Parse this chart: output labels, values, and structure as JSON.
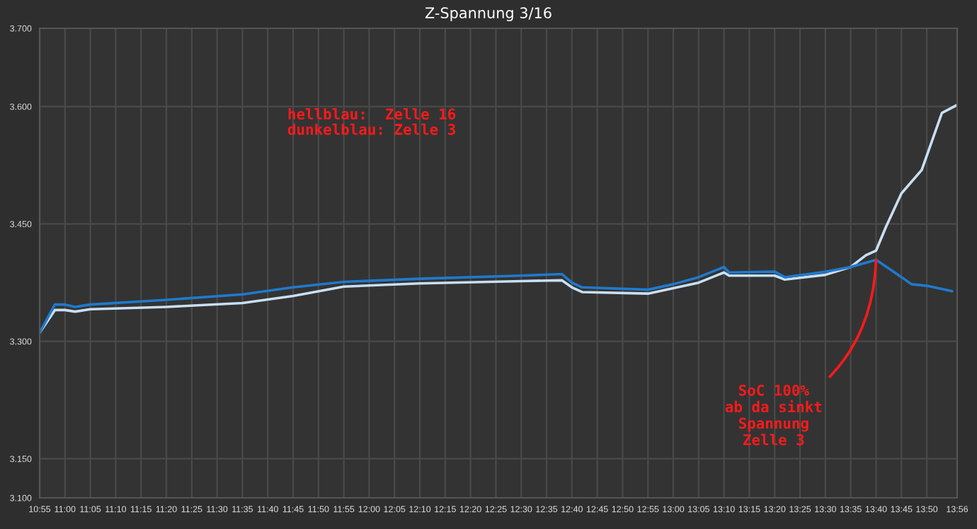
{
  "chart_data": {
    "type": "line",
    "title": "Z-Spannung 3/16",
    "series": [
      {
        "color": "#c9dff2",
        "x": [
          10.9167,
          10.9667,
          11,
          11.0333,
          11.0833,
          11.3333,
          11.5833,
          11.75,
          11.9167,
          12.1667,
          12.5,
          12.6333,
          12.6667,
          12.7,
          12.9167,
          13,
          13.0833,
          13.1667,
          13.1833,
          13.3333,
          13.3667,
          13.5,
          13.5833,
          13.6333,
          13.6667,
          13.7,
          13.75,
          13.8167,
          13.8833,
          13.9333
        ],
        "values": [
          3.311,
          3.34,
          3.34,
          3.338,
          3.341,
          3.344,
          3.349,
          3.358,
          3.37,
          3.374,
          3.377,
          3.378,
          3.369,
          3.363,
          3.361,
          3.368,
          3.375,
          3.388,
          3.384,
          3.384,
          3.379,
          3.385,
          3.395,
          3.41,
          3.416,
          3.447,
          3.489,
          3.519,
          3.592,
          3.602
        ]
      },
      {
        "color": "#1f7acc",
        "x": [
          10.9167,
          10.9667,
          11,
          11.0333,
          11.0833,
          11.3333,
          11.5833,
          11.75,
          11.9167,
          12.1667,
          12.5,
          12.6333,
          12.6667,
          12.7,
          12.9167,
          13,
          13.0833,
          13.1667,
          13.1833,
          13.3333,
          13.3667,
          13.5,
          13.5833,
          13.6667,
          13.7167,
          13.7833,
          13.8333,
          13.9167
        ],
        "values": [
          3.311,
          3.347,
          3.347,
          3.344,
          3.347,
          3.353,
          3.36,
          3.369,
          3.376,
          3.38,
          3.384,
          3.386,
          3.375,
          3.369,
          3.366,
          3.373,
          3.382,
          3.395,
          3.388,
          3.389,
          3.382,
          3.389,
          3.395,
          3.404,
          3.391,
          3.373,
          3.371,
          3.364
        ]
      }
    ],
    "xlim": [
      10.9167,
      13.9333
    ],
    "ylim": [
      3.1,
      3.7
    ],
    "yticks": [
      {
        "value": 3.1,
        "label": "3.100"
      },
      {
        "value": 3.15,
        "label": "3.150"
      },
      {
        "value": 3.3,
        "label": "3.300"
      },
      {
        "value": 3.45,
        "label": "3.450"
      },
      {
        "value": 3.6,
        "label": "3.600"
      },
      {
        "value": 3.7,
        "label": "3.700"
      }
    ],
    "xticks": [
      {
        "value": 10.9167,
        "label": "10:55"
      },
      {
        "value": 11,
        "label": "11:00"
      },
      {
        "value": 11.0833,
        "label": "11:05"
      },
      {
        "value": 11.1667,
        "label": "11:10"
      },
      {
        "value": 11.25,
        "label": "11:15"
      },
      {
        "value": 11.3333,
        "label": "11:20"
      },
      {
        "value": 11.4167,
        "label": "11:25"
      },
      {
        "value": 11.5,
        "label": "11:30"
      },
      {
        "value": 11.5833,
        "label": "11:35"
      },
      {
        "value": 11.6667,
        "label": "11:40"
      },
      {
        "value": 11.75,
        "label": "11:45"
      },
      {
        "value": 11.8333,
        "label": "11:50"
      },
      {
        "value": 11.9167,
        "label": "11:55"
      },
      {
        "value": 12,
        "label": "12:00"
      },
      {
        "value": 12.0833,
        "label": "12:05"
      },
      {
        "value": 12.1667,
        "label": "12:10"
      },
      {
        "value": 12.25,
        "label": "12:15"
      },
      {
        "value": 12.3333,
        "label": "12:20"
      },
      {
        "value": 12.4167,
        "label": "12:25"
      },
      {
        "value": 12.5,
        "label": "12:30"
      },
      {
        "value": 12.5833,
        "label": "12:35"
      },
      {
        "value": 12.6667,
        "label": "12:40"
      },
      {
        "value": 12.75,
        "label": "12:45"
      },
      {
        "value": 12.8333,
        "label": "12:50"
      },
      {
        "value": 12.9167,
        "label": "12:55"
      },
      {
        "value": 13,
        "label": "13:00"
      },
      {
        "value": 13.0833,
        "label": "13:05"
      },
      {
        "value": 13.1667,
        "label": "13:10"
      },
      {
        "value": 13.25,
        "label": "13:15"
      },
      {
        "value": 13.3333,
        "label": "13:20"
      },
      {
        "value": 13.4167,
        "label": "13:25"
      },
      {
        "value": 13.5,
        "label": "13:30"
      },
      {
        "value": 13.5833,
        "label": "13:35"
      },
      {
        "value": 13.6667,
        "label": "13:40"
      },
      {
        "value": 13.75,
        "label": "13:45"
      },
      {
        "value": 13.8333,
        "label": "13:50"
      },
      {
        "value": 13.9333,
        "label": "13:56"
      }
    ],
    "grid": true,
    "annotations": [
      "hellblau:  Zelle 16\ndunkelblau: Zelle 3",
      {
        "text": "SoC 100%\nab da sinkt\nSpannung\nZelle 3",
        "x": 13.6667,
        "y": 3.404
      }
    ]
  }
}
